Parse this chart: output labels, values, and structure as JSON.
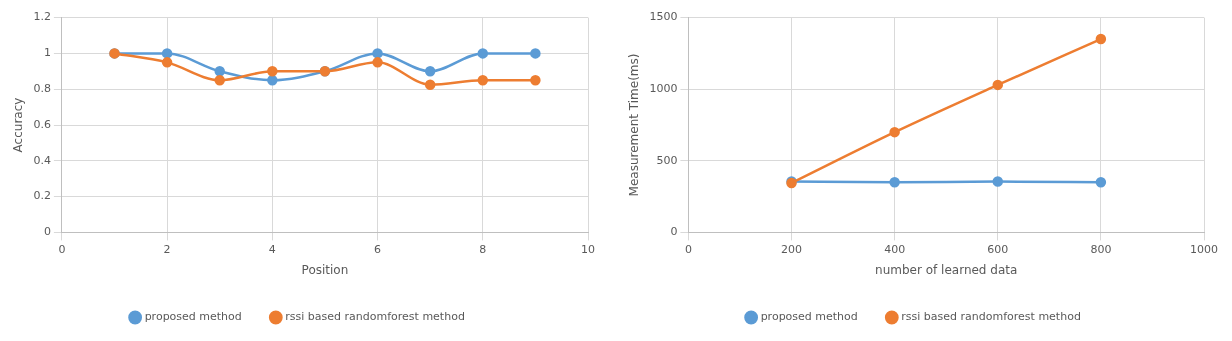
{
  "chart_data": [
    {
      "type": "line",
      "xlabel": "Position",
      "ylabel": "Accuracy",
      "x": [
        1,
        2,
        3,
        4,
        5,
        6,
        7,
        8,
        9
      ],
      "series": [
        {
          "name": "proposed method",
          "color": "#5b9bd5",
          "values": [
            1,
            1,
            0.9,
            0.85,
            0.9,
            1,
            0.9,
            1,
            1
          ]
        },
        {
          "name": "rssi based randomforest method",
          "color": "#ed7d31",
          "values": [
            1,
            0.95,
            0.85,
            0.9,
            0.9,
            0.95,
            0.825,
            0.85,
            0.85
          ]
        }
      ],
      "xlim": [
        0,
        10
      ],
      "xticks": [
        0,
        2,
        4,
        6,
        8,
        10
      ],
      "ylim": [
        0,
        1.2
      ],
      "yticks": [
        0,
        0.2,
        0.4,
        0.6,
        0.8,
        1,
        1.2
      ],
      "grid": true,
      "legend": "bottom",
      "marker": "circle",
      "line_style": "solid"
    },
    {
      "type": "line",
      "xlabel": "number of learned data",
      "ylabel": "Measurement Time(ms)",
      "x": [
        200,
        400,
        600,
        800
      ],
      "series": [
        {
          "name": "proposed method",
          "color": "#5b9bd5",
          "values": [
            355,
            350,
            355,
            350
          ]
        },
        {
          "name": "rssi based randomforest method",
          "color": "#ed7d31",
          "values": [
            345,
            700,
            1030,
            1350
          ]
        }
      ],
      "xlim": [
        0,
        1000
      ],
      "xticks": [
        0,
        200,
        400,
        600,
        800,
        1000
      ],
      "ylim": [
        0,
        1500
      ],
      "yticks": [
        0,
        500,
        1000,
        1500
      ],
      "grid": true,
      "legend": "bottom",
      "marker": "circle",
      "line_style": "solid"
    }
  ]
}
